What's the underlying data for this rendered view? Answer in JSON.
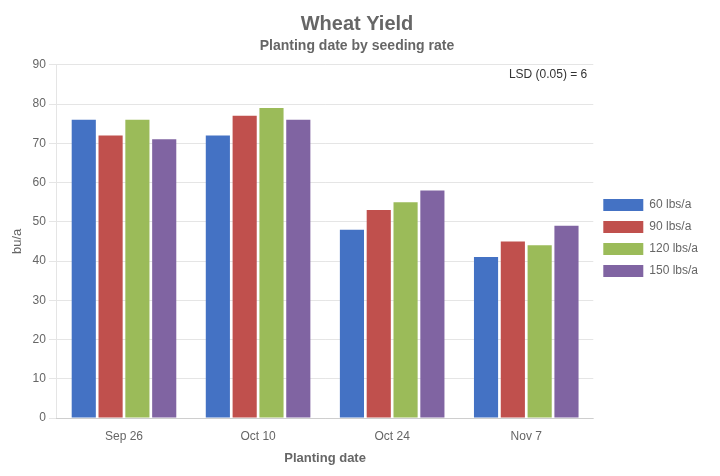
{
  "chart_data": {
    "type": "bar",
    "title": "Wheat Yield",
    "subtitle": "Planting date by seeding rate",
    "xlabel": "Planting date",
    "ylabel": "bu/a",
    "annotation": "LSD (0.05) = 6",
    "categories": [
      "Sep 26",
      "Oct 10",
      "Oct 24",
      "Nov 7"
    ],
    "series": [
      {
        "name": "60 lbs/a",
        "color": "#4472C4",
        "values": [
          76,
          72,
          48,
          41
        ]
      },
      {
        "name": "90 lbs/a",
        "color": "#C0504D",
        "values": [
          72,
          77,
          53,
          45
        ]
      },
      {
        "name": "120 lbs/a",
        "color": "#9BBB59",
        "values": [
          76,
          79,
          55,
          44
        ]
      },
      {
        "name": "150 lbs/a",
        "color": "#8064A2",
        "values": [
          71,
          76,
          58,
          49
        ]
      }
    ],
    "ylim": [
      0,
      90
    ],
    "yticks": [
      0,
      10,
      20,
      30,
      40,
      50,
      60,
      70,
      80,
      90
    ],
    "grid": true,
    "legend": "right"
  }
}
